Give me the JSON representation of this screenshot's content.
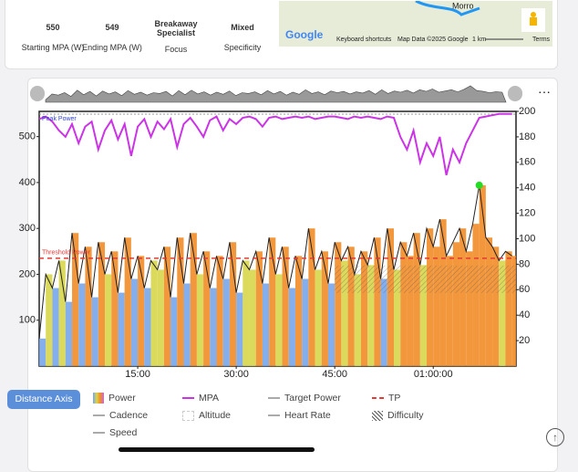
{
  "stats": [
    {
      "value": 550,
      "label": "Starting MPA (W)"
    },
    {
      "value": 549,
      "label": "Ending MPA (W)"
    },
    {
      "value": "Breakaway Specialist",
      "label": "Focus"
    },
    {
      "value": "Mixed",
      "label": "Specificity"
    }
  ],
  "map": {
    "place": "Morro",
    "logo": "Google",
    "shortcuts": "Keyboard shortcuts",
    "attribution": "Map Data ©2025 Google",
    "scale": "1 km",
    "terms": "Terms"
  },
  "button": "Distance Axis",
  "chart_data": {
    "type": "line",
    "annotations": {
      "peak": "Peak Power",
      "threshold": "Threshold Power"
    },
    "x": [
      0,
      60,
      120,
      180,
      240,
      300,
      360,
      420,
      480,
      540,
      600,
      660,
      720,
      780,
      840,
      900,
      960,
      1020,
      1080,
      1140,
      1200,
      1260,
      1320,
      1380,
      1440,
      1500,
      1560,
      1620,
      1680,
      1740,
      1800,
      1860,
      1920,
      1980,
      2040,
      2100,
      2160,
      2220,
      2280,
      2340,
      2400,
      2460,
      2520,
      2580,
      2640,
      2700,
      2760,
      2820,
      2880,
      2940,
      3000,
      3060,
      3120,
      3180,
      3240,
      3300,
      3360,
      3420,
      3480,
      3540,
      3600,
      3660,
      3720,
      3780,
      3840,
      3900,
      3960,
      4020,
      4080,
      4140,
      4200,
      4260,
      4320
    ],
    "series": [
      {
        "name": "Power",
        "color": "#222222",
        "values": [
          60,
          200,
          170,
          230,
          140,
          290,
          180,
          260,
          150,
          270,
          200,
          250,
          160,
          280,
          190,
          240,
          170,
          230,
          210,
          260,
          150,
          280,
          180,
          290,
          200,
          250,
          170,
          240,
          190,
          270,
          160,
          230,
          210,
          250,
          180,
          280,
          200,
          260,
          170,
          240,
          190,
          300,
          210,
          250,
          180,
          270,
          230,
          260,
          200,
          250,
          220,
          280,
          190,
          300,
          210,
          270,
          240,
          290,
          220,
          300,
          260,
          320,
          240,
          270,
          300,
          250,
          310,
          394,
          280,
          260,
          230,
          250,
          240
        ]
      },
      {
        "name": "MPA",
        "color": "#cc33e6",
        "axis": "y2",
        "values": [
          194,
          196,
          192,
          185,
          180,
          190,
          175,
          188,
          192,
          170,
          185,
          193,
          178,
          190,
          165,
          188,
          194,
          180,
          192,
          186,
          194,
          172,
          190,
          195,
          188,
          180,
          193,
          196,
          185,
          194,
          190,
          195,
          196,
          194,
          188,
          195,
          196,
          194,
          195,
          196,
          195,
          196,
          194,
          195,
          196,
          196,
          195,
          194,
          196,
          195,
          196,
          195,
          194,
          196,
          195,
          180,
          170,
          185,
          160,
          175,
          165,
          180,
          150,
          170,
          160,
          175,
          185,
          195,
          196,
          197,
          198,
          198,
          198
        ]
      }
    ],
    "tp": {
      "name": "TP",
      "value": 235,
      "color": "#e53935"
    },
    "other_legend": [
      {
        "name": "Target Power"
      },
      {
        "name": "Cadence"
      },
      {
        "name": "Altitude"
      },
      {
        "name": "Heart Rate"
      },
      {
        "name": "Difficulty"
      },
      {
        "name": "Speed"
      }
    ],
    "xlim": [
      0,
      4356
    ],
    "xticks": [
      {
        "value": 900,
        "label": "15:00"
      },
      {
        "value": 1800,
        "label": "30:00"
      },
      {
        "value": 2700,
        "label": "45:00"
      },
      {
        "value": 3600,
        "label": "01:00:00"
      }
    ],
    "ylim": [
      0,
      555
    ],
    "yticks": [
      100,
      200,
      300,
      400,
      500
    ],
    "y2lim": [
      0,
      200
    ],
    "y2ticks": [
      20,
      40,
      60,
      80,
      100,
      120,
      140,
      160,
      180,
      200
    ],
    "grid": false
  }
}
